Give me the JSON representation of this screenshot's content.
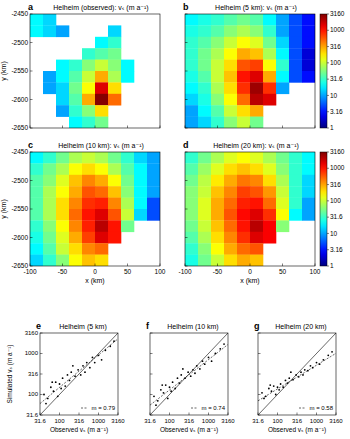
{
  "chart_data": [
    {
      "type": "heatmap",
      "panel": "a",
      "title": "Helheim (observed): vₛ (m a⁻¹)",
      "y_label": "y (km)",
      "tick_labels": "y",
      "xlim": [
        -100,
        100
      ],
      "ylim": [
        -2650,
        -2450
      ],
      "xticks": [
        -100,
        -50,
        0,
        50,
        100
      ],
      "yticks": [
        -2650,
        -2600,
        -2550,
        -2500,
        -2450
      ],
      "cells": [
        [
          20,
          15,
          null,
          null,
          null,
          null,
          null,
          null,
          null,
          null
        ],
        [
          20,
          15,
          10,
          null,
          null,
          null,
          15,
          null,
          null,
          null
        ],
        [
          null,
          null,
          null,
          null,
          null,
          20,
          30,
          null,
          null,
          null
        ],
        [
          null,
          null,
          null,
          null,
          30,
          40,
          50,
          null,
          null,
          null
        ],
        [
          null,
          null,
          20,
          30,
          60,
          100,
          60,
          20,
          null,
          null
        ],
        [
          null,
          10,
          20,
          40,
          100,
          300,
          80,
          20,
          null,
          null
        ],
        [
          null,
          10,
          15,
          50,
          150,
          1500,
          200,
          null,
          null,
          null
        ],
        [
          null,
          null,
          15,
          40,
          300,
          3000,
          500,
          null,
          null,
          null
        ],
        [
          null,
          null,
          10,
          30,
          60,
          200,
          null,
          null,
          null,
          null
        ],
        [
          null,
          null,
          null,
          20,
          30,
          50,
          null,
          null,
          null,
          null
        ]
      ]
    },
    {
      "type": "heatmap",
      "panel": "b",
      "title": "Helheim (5 km): vₛ (m a⁻¹)",
      "tick_labels": false,
      "xlim": [
        -100,
        100
      ],
      "ylim": [
        -2650,
        -2450
      ],
      "xticks": [
        -100,
        -50,
        0,
        50,
        100
      ],
      "yticks": [
        -2650,
        -2600,
        -2550,
        -2500,
        -2450
      ],
      "colorbar": {
        "range": [
          1,
          3160
        ],
        "ticks": [
          1,
          3.16,
          10,
          31.6,
          100,
          316,
          1000,
          3160
        ]
      },
      "cells": [
        [
          20,
          25,
          30,
          40,
          50,
          40,
          20,
          10,
          5,
          3
        ],
        [
          25,
          30,
          40,
          60,
          80,
          60,
          30,
          10,
          5,
          3
        ],
        [
          30,
          40,
          60,
          100,
          150,
          120,
          50,
          15,
          5,
          3
        ],
        [
          30,
          50,
          80,
          150,
          300,
          250,
          80,
          20,
          5,
          2
        ],
        [
          30,
          50,
          100,
          200,
          600,
          700,
          150,
          30,
          5,
          2
        ],
        [
          25,
          40,
          100,
          250,
          1000,
          1500,
          300,
          20,
          5,
          3
        ],
        [
          20,
          30,
          80,
          200,
          800,
          2500,
          800,
          10,
          null,
          null
        ],
        [
          15,
          25,
          60,
          150,
          500,
          2000,
          1500,
          null,
          null,
          null
        ],
        [
          10,
          20,
          40,
          100,
          200,
          300,
          null,
          null,
          null,
          null
        ],
        [
          10,
          15,
          30,
          60,
          100,
          50,
          null,
          null,
          null,
          null
        ]
      ]
    },
    {
      "type": "heatmap",
      "panel": "c",
      "title": "Helheim (10 km): vₛ (m a⁻¹)",
      "x_label": "x (km)",
      "y_label": "y (km)",
      "tick_labels": true,
      "xlim": [
        -100,
        100
      ],
      "ylim": [
        -2650,
        -2450
      ],
      "xticks": [
        -100,
        -50,
        0,
        50,
        100
      ],
      "yticks": [
        -2650,
        -2600,
        -2550,
        -2500,
        -2450
      ],
      "cells": [
        [
          20,
          30,
          50,
          80,
          100,
          80,
          50,
          30,
          15,
          10
        ],
        [
          30,
          50,
          80,
          150,
          200,
          150,
          80,
          40,
          20,
          10
        ],
        [
          40,
          60,
          120,
          250,
          400,
          300,
          150,
          50,
          20,
          10
        ],
        [
          40,
          80,
          150,
          300,
          600,
          500,
          250,
          60,
          20,
          10
        ],
        [
          40,
          80,
          200,
          400,
          800,
          900,
          400,
          80,
          20,
          5
        ],
        [
          40,
          80,
          200,
          500,
          1000,
          1500,
          600,
          100,
          15,
          5
        ],
        [
          30,
          60,
          150,
          400,
          900,
          2000,
          1000,
          50,
          null,
          null
        ],
        [
          25,
          50,
          120,
          300,
          700,
          1500,
          1000,
          null,
          null,
          null
        ],
        [
          20,
          40,
          100,
          200,
          400,
          500,
          null,
          null,
          null,
          null
        ],
        [
          15,
          30,
          60,
          150,
          250,
          200,
          null,
          null,
          null,
          null
        ]
      ]
    },
    {
      "type": "heatmap",
      "panel": "d",
      "title": "Helheim (20 km): vₛ (m a⁻¹)",
      "x_label": "x (km)",
      "tick_labels": "x",
      "xlim": [
        -100,
        100
      ],
      "ylim": [
        -2650,
        -2450
      ],
      "xticks": [
        -100,
        -50,
        0,
        50,
        100
      ],
      "yticks": [
        -2650,
        -2600,
        -2550,
        -2500,
        -2450
      ],
      "colorbar": {
        "range": [
          1,
          3160
        ],
        "ticks": [
          1,
          3.16,
          10,
          31.6,
          100,
          316,
          1000,
          3160
        ]
      },
      "cells": [
        [
          30,
          50,
          80,
          120,
          150,
          120,
          80,
          50,
          30,
          20
        ],
        [
          40,
          70,
          120,
          200,
          250,
          200,
          120,
          60,
          30,
          20
        ],
        [
          50,
          90,
          180,
          300,
          450,
          400,
          200,
          80,
          30,
          15
        ],
        [
          60,
          100,
          250,
          400,
          700,
          600,
          350,
          100,
          30,
          15
        ],
        [
          60,
          120,
          300,
          500,
          900,
          1000,
          500,
          120,
          30,
          10
        ],
        [
          60,
          120,
          300,
          600,
          1100,
          1500,
          800,
          150,
          20,
          10
        ],
        [
          50,
          100,
          250,
          500,
          1000,
          2000,
          1200,
          60,
          null,
          null
        ],
        [
          40,
          80,
          200,
          400,
          800,
          1500,
          1200,
          null,
          null,
          null
        ],
        [
          30,
          60,
          150,
          300,
          500,
          600,
          null,
          null,
          null,
          null
        ],
        [
          25,
          50,
          100,
          200,
          300,
          250,
          null,
          null,
          null,
          null
        ]
      ]
    },
    {
      "type": "scatter",
      "panel": "e",
      "title": "Helheim (5 km)",
      "x_label": "Observed vₛ (m a⁻¹)",
      "y_label": "Simulated vₛ (m a⁻¹)",
      "tick_labels": true,
      "log": true,
      "xlim": [
        31.6,
        3160
      ],
      "ylim": [
        31.6,
        3160
      ],
      "xticks": [
        31.6,
        100,
        316,
        1000,
        3160
      ],
      "yticks": [
        31.6,
        100,
        316,
        1000,
        3160
      ],
      "annotation": "m = 0.79",
      "fit": {
        "x": [
          31.6,
          3160
        ],
        "values": [
          60,
          2280
        ]
      },
      "x": [
        40,
        50,
        60,
        70,
        80,
        90,
        100,
        120,
        140,
        160,
        180,
        200,
        250,
        300,
        350,
        400,
        450,
        500,
        600,
        700,
        800,
        1000,
        1200,
        1500,
        2000,
        2500,
        45,
        65,
        110,
        220
      ],
      "values": [
        100,
        80,
        150,
        120,
        200,
        90,
        180,
        250,
        160,
        300,
        220,
        350,
        280,
        400,
        300,
        500,
        350,
        600,
        450,
        800,
        600,
        900,
        700,
        1200,
        1500,
        2000,
        60,
        200,
        140,
        500
      ]
    },
    {
      "type": "scatter",
      "panel": "f",
      "title": "Helheim (10 km)",
      "x_label": "Observed vₛ (m a⁻¹)",
      "tick_labels": "x",
      "log": true,
      "xlim": [
        31.6,
        3160
      ],
      "ylim": [
        31.6,
        3160
      ],
      "xticks": [
        31.6,
        100,
        316,
        1000,
        3160
      ],
      "yticks": [
        31.6,
        100,
        316,
        1000,
        3160
      ],
      "annotation": "m = 0.74",
      "fit": {
        "x": [
          31.6,
          3160
        ],
        "values": [
          55,
          1660
        ]
      },
      "x": [
        40,
        50,
        60,
        70,
        80,
        90,
        100,
        120,
        140,
        160,
        180,
        200,
        250,
        300,
        350,
        400,
        450,
        500,
        600,
        700,
        800,
        1000,
        1200,
        1500,
        2000,
        2500,
        45,
        65,
        110,
        220
      ],
      "values": [
        90,
        70,
        130,
        110,
        170,
        80,
        150,
        200,
        140,
        250,
        190,
        300,
        250,
        350,
        280,
        400,
        330,
        500,
        420,
        650,
        550,
        800,
        650,
        1000,
        1300,
        1700,
        55,
        170,
        120,
        420
      ]
    },
    {
      "type": "scatter",
      "panel": "g",
      "title": "Helheim (20 km)",
      "x_label": "Observed vₛ (m a⁻¹)",
      "tick_labels": "x",
      "log": true,
      "xlim": [
        31.6,
        3160
      ],
      "ylim": [
        31.6,
        3160
      ],
      "xticks": [
        31.6,
        100,
        316,
        1000,
        3160
      ],
      "yticks": [
        31.6,
        100,
        316,
        1000,
        3160
      ],
      "annotation": "m = 0.58",
      "fit": {
        "x": [
          31.6,
          3160
        ],
        "values": [
          70,
          1010
        ]
      },
      "x": [
        40,
        50,
        60,
        70,
        80,
        90,
        100,
        120,
        140,
        160,
        180,
        200,
        250,
        300,
        350,
        400,
        450,
        500,
        600,
        700,
        800,
        1000,
        1200,
        1500,
        2000,
        2500,
        45,
        65,
        110,
        220
      ],
      "values": [
        110,
        90,
        140,
        120,
        160,
        100,
        150,
        180,
        150,
        220,
        190,
        250,
        230,
        300,
        270,
        350,
        300,
        400,
        380,
        500,
        450,
        600,
        550,
        700,
        900,
        1100,
        80,
        170,
        130,
        350
      ]
    }
  ]
}
